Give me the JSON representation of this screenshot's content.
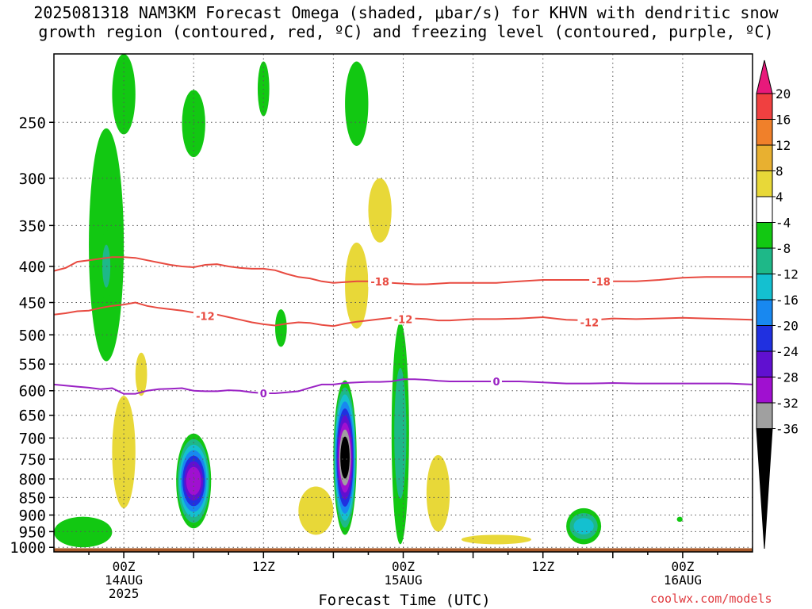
{
  "title": {
    "line1": "2025081318 NAM3KM Forecast Omega (shaded, μbar/s) for KHVN with dendritic snow",
    "line2": "growth region (contoured, red, ºC) and freezing level (contoured, purple, ºC)"
  },
  "credit": "coolwx.com/models",
  "chart_data": {
    "type": "heatmap",
    "title": "2025081318 NAM3KM Forecast Omega (shaded, μbar/s) for KHVN with dendritic snow growth region (contoured, red, ºC) and freezing level (contoured, purple, ºC)",
    "xlabel": "Forecast Time (UTC)",
    "ylabel": "",
    "y_axis": {
      "ticks": [
        250,
        300,
        350,
        400,
        450,
        500,
        550,
        600,
        650,
        700,
        750,
        800,
        850,
        900,
        950,
        1000
      ],
      "range_hpa": [
        1015,
        200
      ],
      "scale": "log-pressure",
      "grid": true
    },
    "x_axis": {
      "range_hours": [
        -6,
        54
      ],
      "ticks": [
        {
          "hour": 0,
          "line1": "00Z",
          "line2": "14AUG",
          "line3": "2025"
        },
        {
          "hour": 12,
          "line1": "12Z",
          "line2": "",
          "line3": ""
        },
        {
          "hour": 24,
          "line1": "00Z",
          "line2": "15AUG",
          "line3": ""
        },
        {
          "hour": 36,
          "line1": "12Z",
          "line2": "",
          "line3": ""
        },
        {
          "hour": 48,
          "line1": "00Z",
          "line2": "16AUG",
          "line3": ""
        }
      ],
      "grid": true
    },
    "colorbar": {
      "labels": [
        "20",
        "16",
        "12",
        "8",
        "4",
        "-4",
        "-8",
        "-12",
        "-16",
        "-20",
        "-24",
        "-28",
        "-32",
        "-36"
      ],
      "bins": [
        {
          "color": "#e8197b",
          "range": ">20"
        },
        {
          "color": "#f04040",
          "range": "16 to 20"
        },
        {
          "color": "#f0802a",
          "range": "12 to 16"
        },
        {
          "color": "#e8b030",
          "range": "8 to 12"
        },
        {
          "color": "#e8d838",
          "range": "4 to 8"
        },
        {
          "color": "#ffffff",
          "range": "-4 to 4"
        },
        {
          "color": "#12c812",
          "range": "-8 to -4"
        },
        {
          "color": "#1eb888",
          "range": "-12 to -8"
        },
        {
          "color": "#14c0d0",
          "range": "-16 to -12"
        },
        {
          "color": "#1888f0",
          "range": "-20 to -16"
        },
        {
          "color": "#2030e0",
          "range": "-24 to -20"
        },
        {
          "color": "#6010d0",
          "range": "-28 to -24"
        },
        {
          "color": "#a010d0",
          "range": "-32 to -28"
        },
        {
          "color": "#a0a0a0",
          "range": "-36 to -32"
        },
        {
          "color": "#000000",
          "range": "<-36"
        }
      ]
    },
    "contours": [
      {
        "label": "-18",
        "color": "#e84a40",
        "label_positions": [
          [
            22,
            420
          ],
          [
            41,
            420
          ]
        ],
        "points": [
          [
            -6,
            406
          ],
          [
            -5,
            402
          ],
          [
            -4,
            394
          ],
          [
            -3,
            392
          ],
          [
            -2,
            390
          ],
          [
            -1,
            388
          ],
          [
            0,
            388
          ],
          [
            1,
            389
          ],
          [
            2,
            392
          ],
          [
            3,
            395
          ],
          [
            4,
            398
          ],
          [
            5,
            400
          ],
          [
            6,
            401
          ],
          [
            7,
            398
          ],
          [
            8,
            397
          ],
          [
            9,
            400
          ],
          [
            10,
            402
          ],
          [
            11,
            403
          ],
          [
            12,
            403
          ],
          [
            13,
            405
          ],
          [
            14,
            410
          ],
          [
            15,
            414
          ],
          [
            16,
            416
          ],
          [
            17,
            420
          ],
          [
            18,
            422
          ],
          [
            19,
            421
          ],
          [
            20,
            420
          ],
          [
            21,
            420
          ],
          [
            22,
            421
          ],
          [
            23,
            422
          ],
          [
            24,
            423
          ],
          [
            25,
            424
          ],
          [
            26,
            424
          ],
          [
            27,
            423
          ],
          [
            28,
            422
          ],
          [
            30,
            422
          ],
          [
            32,
            422
          ],
          [
            34,
            420
          ],
          [
            36,
            418
          ],
          [
            38,
            418
          ],
          [
            40,
            418
          ],
          [
            42,
            420
          ],
          [
            44,
            420
          ],
          [
            46,
            418
          ],
          [
            48,
            415
          ],
          [
            50,
            414
          ],
          [
            52,
            414
          ],
          [
            54,
            414
          ]
        ]
      },
      {
        "label": "-12",
        "color": "#e84a40",
        "label_positions": [
          [
            7,
            470
          ],
          [
            24,
            475
          ],
          [
            40,
            480
          ]
        ],
        "points": [
          [
            -6,
            468
          ],
          [
            -5,
            466
          ],
          [
            -4,
            463
          ],
          [
            -3,
            462
          ],
          [
            -2,
            458
          ],
          [
            -1,
            455
          ],
          [
            0,
            453
          ],
          [
            1,
            450
          ],
          [
            2,
            455
          ],
          [
            3,
            458
          ],
          [
            4,
            460
          ],
          [
            5,
            462
          ],
          [
            6,
            465
          ],
          [
            7,
            467
          ],
          [
            8,
            468
          ],
          [
            9,
            472
          ],
          [
            10,
            476
          ],
          [
            11,
            480
          ],
          [
            12,
            483
          ],
          [
            13,
            485
          ],
          [
            14,
            482
          ],
          [
            15,
            480
          ],
          [
            16,
            481
          ],
          [
            17,
            484
          ],
          [
            18,
            486
          ],
          [
            19,
            482
          ],
          [
            20,
            479
          ],
          [
            21,
            477
          ],
          [
            22,
            475
          ],
          [
            23,
            473
          ],
          [
            24,
            472
          ],
          [
            25,
            474
          ],
          [
            26,
            475
          ],
          [
            27,
            477
          ],
          [
            28,
            477
          ],
          [
            30,
            475
          ],
          [
            32,
            475
          ],
          [
            34,
            474
          ],
          [
            36,
            472
          ],
          [
            38,
            476
          ],
          [
            40,
            477
          ],
          [
            42,
            474
          ],
          [
            44,
            475
          ],
          [
            46,
            474
          ],
          [
            48,
            473
          ],
          [
            50,
            474
          ],
          [
            52,
            475
          ],
          [
            54,
            476
          ]
        ]
      },
      {
        "label": "0",
        "color": "#9a22c4",
        "label_positions": [
          [
            12,
            605
          ],
          [
            32,
            582
          ]
        ],
        "points": [
          [
            -6,
            588
          ],
          [
            -5,
            590
          ],
          [
            -4,
            592
          ],
          [
            -3,
            594
          ],
          [
            -2,
            597
          ],
          [
            -1,
            595
          ],
          [
            0,
            606
          ],
          [
            1,
            606
          ],
          [
            2,
            600
          ],
          [
            3,
            597
          ],
          [
            4,
            596
          ],
          [
            5,
            595
          ],
          [
            6,
            600
          ],
          [
            7,
            601
          ],
          [
            8,
            601
          ],
          [
            9,
            599
          ],
          [
            10,
            600
          ],
          [
            11,
            603
          ],
          [
            12,
            605
          ],
          [
            13,
            605
          ],
          [
            14,
            603
          ],
          [
            15,
            601
          ],
          [
            16,
            594
          ],
          [
            17,
            588
          ],
          [
            18,
            588
          ],
          [
            19,
            585
          ],
          [
            20,
            584
          ],
          [
            21,
            583
          ],
          [
            22,
            583
          ],
          [
            23,
            582
          ],
          [
            24,
            578
          ],
          [
            25,
            578
          ],
          [
            26,
            579
          ],
          [
            27,
            581
          ],
          [
            28,
            582
          ],
          [
            30,
            582
          ],
          [
            32,
            582
          ],
          [
            34,
            582
          ],
          [
            36,
            584
          ],
          [
            38,
            586
          ],
          [
            40,
            586
          ],
          [
            42,
            585
          ],
          [
            44,
            586
          ],
          [
            46,
            586
          ],
          [
            48,
            586
          ],
          [
            50,
            586
          ],
          [
            52,
            586
          ],
          [
            54,
            588
          ]
        ]
      }
    ],
    "omega_features": [
      {
        "hours": [
          -6,
          -1
        ],
        "p": [
          905,
          1000
        ],
        "value": -8
      },
      {
        "hours": [
          -3,
          0
        ],
        "p": [
          255,
          545
        ],
        "value": -6
      },
      {
        "hours": [
          -2,
          -1
        ],
        "p": [
          355,
          450
        ],
        "value": -10
      },
      {
        "hours": [
          -1,
          1
        ],
        "p": [
          200,
          260
        ],
        "value": -6
      },
      {
        "hours": [
          1,
          2
        ],
        "p": [
          530,
          610
        ],
        "value": 5
      },
      {
        "hours": [
          -1,
          1
        ],
        "p": [
          610,
          880
        ],
        "value": 6
      },
      {
        "hours": [
          4.5,
          7.5
        ],
        "p": [
          690,
          940
        ],
        "value": -30
      },
      {
        "hours": [
          5,
          7
        ],
        "p": [
          225,
          280
        ],
        "value": -6
      },
      {
        "hours": [
          11.5,
          12.5
        ],
        "p": [
          205,
          245
        ],
        "value": -6
      },
      {
        "hours": [
          13,
          14
        ],
        "p": [
          460,
          520
        ],
        "value": -6
      },
      {
        "hours": [
          18,
          20
        ],
        "p": [
          580,
          960
        ],
        "value": -40
      },
      {
        "hours": [
          15,
          18
        ],
        "p": [
          820,
          960
        ],
        "value": 5
      },
      {
        "hours": [
          19,
          21
        ],
        "p": [
          370,
          490
        ],
        "value": 6
      },
      {
        "hours": [
          19,
          21
        ],
        "p": [
          205,
          270
        ],
        "value": -6
      },
      {
        "hours": [
          21,
          23
        ],
        "p": [
          300,
          370
        ],
        "value": 5
      },
      {
        "hours": [
          23,
          24.5
        ],
        "p": [
          480,
          990
        ],
        "value": -10
      },
      {
        "hours": [
          26,
          28
        ],
        "p": [
          740,
          950
        ],
        "value": 5
      },
      {
        "hours": [
          29,
          35
        ],
        "p": [
          960,
          990
        ],
        "value": 5
      },
      {
        "hours": [
          38,
          41
        ],
        "p": [
          880,
          990
        ],
        "value": -14
      },
      {
        "hours": [
          47.5,
          48
        ],
        "p": [
          905,
          920
        ],
        "value": -6
      }
    ],
    "surface": {
      "label": "ground",
      "color": "#a85a2a",
      "p_top": 1003
    }
  }
}
